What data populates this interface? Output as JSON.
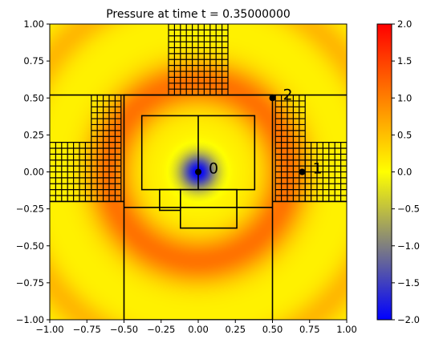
{
  "chart_data": {
    "type": "heatmap",
    "title": "Pressure at time t =     0.35000000",
    "xlim": [
      -1,
      1
    ],
    "ylim": [
      -1,
      1
    ],
    "xticks": [
      "−1.00",
      "−0.75",
      "−0.50",
      "−0.25",
      "0.00",
      "0.25",
      "0.50",
      "0.75",
      "1.00"
    ],
    "yticks": [
      "1.00",
      "0.75",
      "0.50",
      "0.25",
      "0.00",
      "−0.25",
      "−0.50",
      "−0.75",
      "−1.00"
    ],
    "colorbar": {
      "range": [
        -2,
        2
      ],
      "ticks": [
        "2.0",
        "1.5",
        "1.0",
        "0.5",
        "0.0",
        "−0.5",
        "−1.0",
        "−1.5",
        "−2.0"
      ],
      "colors": [
        "#0000ff",
        "#ffff00",
        "#ff0000"
      ]
    },
    "field": {
      "center": [
        0,
        0
      ],
      "trough_value": -2.0,
      "ring_radius": 0.6,
      "ring_value": 1.1,
      "background_value": 0.1
    },
    "amr_patches": [
      {
        "x": [
          -0.5,
          0.5
        ],
        "y": [
          -1.0,
          0.52
        ]
      },
      {
        "x": [
          -0.38,
          0.38
        ],
        "y": [
          -0.12,
          0.38
        ]
      },
      {
        "x": [
          -0.26,
          -0.12
        ],
        "y": [
          -0.26,
          -0.12
        ]
      },
      {
        "x": [
          -0.12,
          0.26
        ],
        "y": [
          -0.38,
          -0.12
        ]
      }
    ],
    "fine_grids": [
      {
        "x": [
          -0.2,
          0.2
        ],
        "y": [
          0.52,
          1.0
        ]
      },
      {
        "x": [
          -0.72,
          -0.52
        ],
        "y": [
          -0.2,
          0.52
        ]
      },
      {
        "x": [
          -1.0,
          -0.72
        ],
        "y": [
          -0.2,
          0.2
        ]
      },
      {
        "x": [
          0.52,
          0.72
        ],
        "y": [
          -0.2,
          0.52
        ]
      },
      {
        "x": [
          0.72,
          1.0
        ],
        "y": [
          -0.2,
          0.2
        ]
      }
    ],
    "gauges": [
      {
        "label": "0",
        "x": 0.0,
        "y": 0.0
      },
      {
        "label": "1",
        "x": 0.7,
        "y": 0.0
      },
      {
        "label": "2",
        "x": 0.5,
        "y": 0.5
      }
    ]
  }
}
